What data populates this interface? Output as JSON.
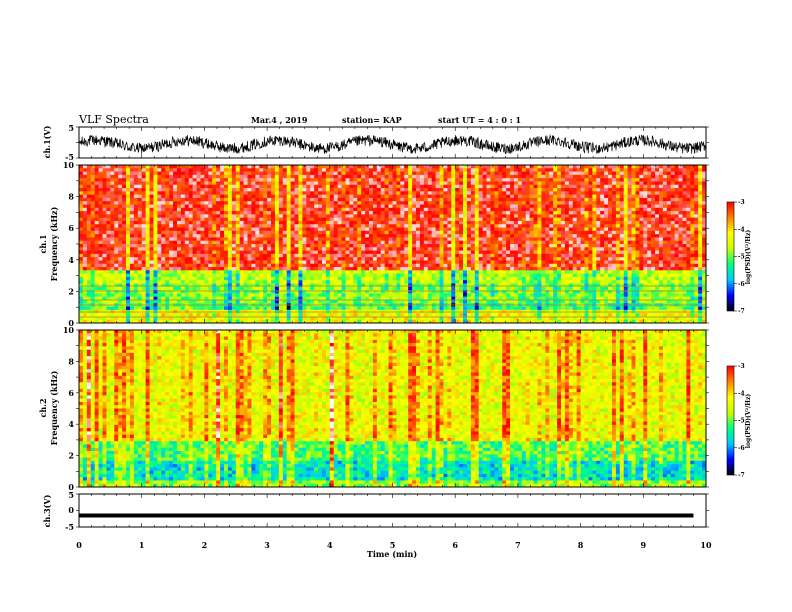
{
  "header": {
    "title": "VLF Spectra",
    "date": "Mar.4 , 2019",
    "station": "station= KAP",
    "start": "start UT = 4 : 0 : 1"
  },
  "colors": {
    "colormap": [
      "#000000",
      "#0000ff",
      "#00c8ff",
      "#00ff80",
      "#c8ff00",
      "#ffff00",
      "#ff8000",
      "#ff0000",
      "#ffffff"
    ],
    "waveform": "#000000"
  },
  "chart_data": [
    {
      "type": "line",
      "panel": "ch1-waveform",
      "ylabel": "ch.1(V)",
      "ylim": [
        -5,
        5
      ],
      "yticks": [
        "5",
        "-5"
      ],
      "xlim": [
        0,
        10
      ],
      "description_values": "noisy wave oscillating between about -3.5 and 2.5 V"
    },
    {
      "type": "heatmap",
      "panel": "ch1-spectrogram",
      "ylabel": "ch.1\nFrequency (kHz)",
      "ylim": [
        0,
        10
      ],
      "xlim": [
        0,
        10
      ],
      "yticks": [
        "0",
        "2",
        "4",
        "6",
        "8",
        "10"
      ],
      "colorbar": {
        "label": "log(PSD)(V²/Hz)",
        "range": [
          -7,
          -3
        ],
        "ticks": [
          "-3",
          "-4",
          "-5",
          "-6",
          "-7"
        ]
      },
      "bands": [
        {
          "from_khz": 0,
          "to_khz": 0.9,
          "level": -4.6
        },
        {
          "from_khz": 0.9,
          "to_khz": 1.3,
          "level": -5.3
        },
        {
          "from_khz": 1.3,
          "to_khz": 2.4,
          "level": -5.1
        },
        {
          "from_khz": 2.4,
          "to_khz": 3.3,
          "level": -4.9
        },
        {
          "from_khz": 3.3,
          "to_khz": 10,
          "level": -3.5
        }
      ]
    },
    {
      "type": "heatmap",
      "panel": "ch2-spectrogram",
      "ylabel": "ch.2\nFrequency (kHz)",
      "ylim": [
        0,
        10
      ],
      "xlim": [
        0,
        10
      ],
      "yticks": [
        "0",
        "2",
        "4",
        "6",
        "8",
        "10"
      ],
      "colorbar": {
        "label": "log(PSD)(V²/Hz)",
        "range": [
          -7,
          -3
        ],
        "ticks": [
          "-3",
          "-4",
          "-5",
          "-6",
          "-7"
        ]
      },
      "bands": [
        {
          "from_khz": 0,
          "to_khz": 0.5,
          "level": -5.2
        },
        {
          "from_khz": 0.5,
          "to_khz": 1.6,
          "level": -5.8
        },
        {
          "from_khz": 1.6,
          "to_khz": 3.0,
          "level": -5.4
        },
        {
          "from_khz": 3.0,
          "to_khz": 10,
          "level": -4.7
        }
      ]
    },
    {
      "type": "line",
      "panel": "ch3-waveform",
      "ylabel": "ch.3(V)",
      "ylim": [
        -5,
        5
      ],
      "yticks": [
        "5",
        "0",
        "-5"
      ],
      "xlim": [
        0,
        10
      ],
      "xlabel": "Time (min)",
      "xticks": [
        "0",
        "1",
        "2",
        "3",
        "4",
        "5",
        "6",
        "7",
        "8",
        "9",
        "10"
      ],
      "value": -1.5,
      "x_end": 9.8
    }
  ]
}
